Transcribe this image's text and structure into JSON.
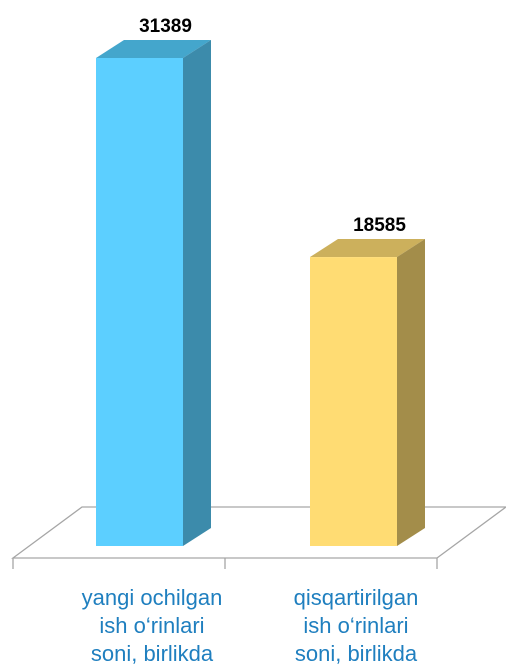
{
  "chart_data": {
    "type": "bar",
    "style": "3d-column",
    "categories": [
      "yangi ochilgan\nish o‘rinlari\nsoni, birlikda",
      "qisqartirilgan\nish o‘rinlari\nsoni, birlikda"
    ],
    "values": [
      31389,
      18585
    ],
    "value_labels": [
      "31389",
      "18585"
    ],
    "ylim": [
      0,
      31389
    ],
    "grid": false,
    "legend": "none",
    "colors": [
      {
        "front": "#5ccfff",
        "top": "#44a6cc",
        "side": "#3c8bab"
      },
      {
        "front": "#ffdc73",
        "top": "#ccb05c",
        "side": "#a38d4a"
      }
    ],
    "axis_color": "#a6a6a6",
    "label_color": "#1f7fbf"
  }
}
